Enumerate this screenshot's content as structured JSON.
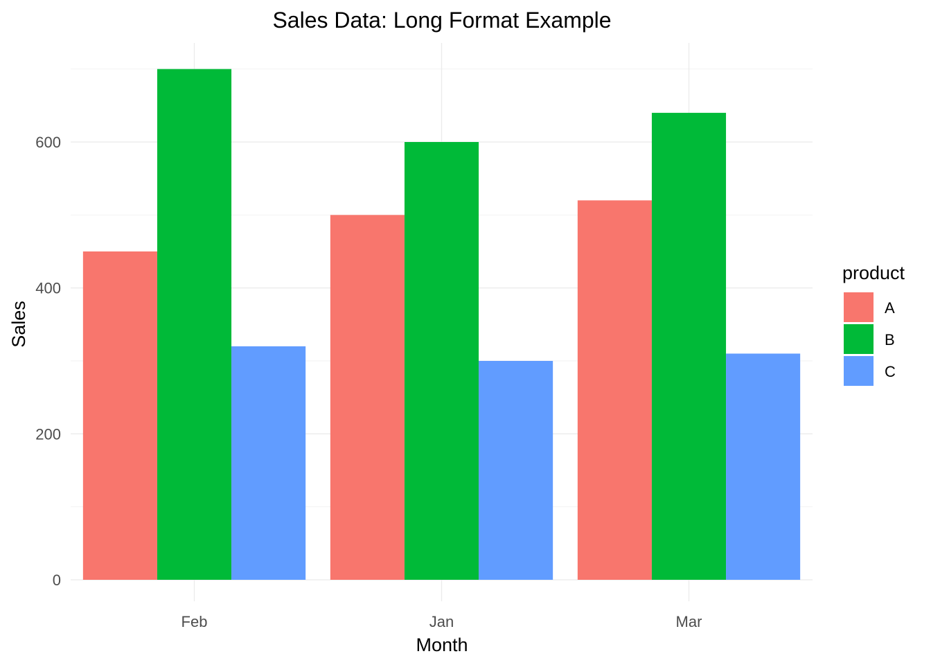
{
  "chart_data": {
    "type": "bar",
    "title": "Sales Data: Long Format Example",
    "xlabel": "Month",
    "ylabel": "Sales",
    "categories": [
      "Feb",
      "Jan",
      "Mar"
    ],
    "series": [
      {
        "name": "A",
        "color": "#F8766D",
        "values": [
          450,
          500,
          520
        ]
      },
      {
        "name": "B",
        "color": "#00BA38",
        "values": [
          700,
          600,
          640
        ]
      },
      {
        "name": "C",
        "color": "#619CFF",
        "values": [
          320,
          300,
          310
        ]
      }
    ],
    "ylim": [
      0,
      735
    ],
    "yticks": [
      0,
      200,
      400,
      600
    ],
    "grid": true,
    "legend": {
      "title": "product",
      "position": "right"
    }
  }
}
